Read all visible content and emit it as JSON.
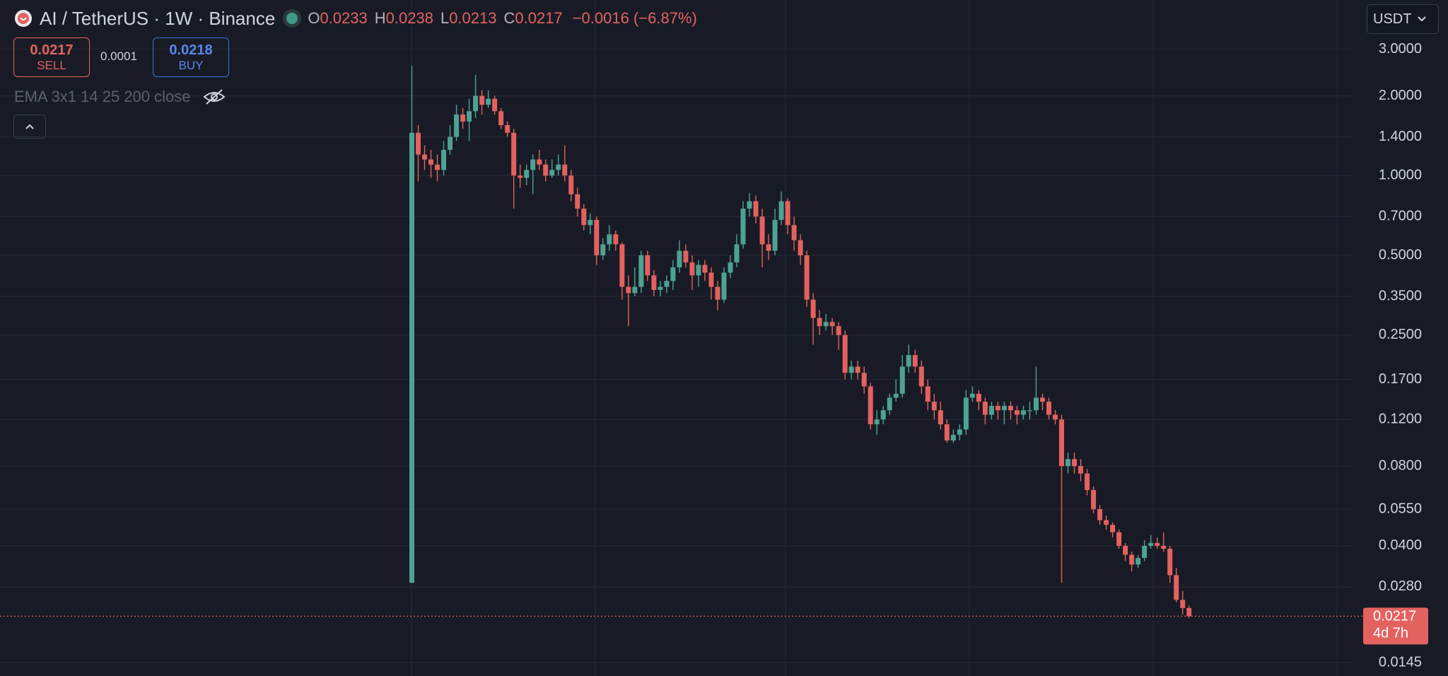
{
  "header": {
    "symbol": "AI / TetherUS · 1W · Binance",
    "ohlc_labels": [
      "O",
      "H",
      "L",
      "C"
    ],
    "change": "−0.0016 (−6.87%)"
  },
  "trade": {
    "sell_price": 0.0217,
    "sell_label": "SELL",
    "spread": 0.0001,
    "buy_price": 0.0218,
    "buy_label": "BUY"
  },
  "indicator": "EMA 3x1 14 25 200 close",
  "currency": "USDT",
  "chart_data": {
    "type": "candlestick",
    "open": [
      0.029,
      1.45,
      1.2,
      1.15,
      1.1,
      1.05,
      1.25,
      1.4,
      1.7,
      1.6,
      1.75,
      2.0,
      1.85,
      1.95,
      1.75,
      1.55,
      1.45,
      1.0,
      0.98,
      1.05,
      1.15,
      1.1,
      1.0,
      1.05,
      1.1,
      1.0,
      0.85,
      0.75,
      0.65,
      0.68,
      0.5,
      0.55,
      0.6,
      0.55,
      0.38,
      0.36,
      0.38,
      0.5,
      0.42,
      0.37,
      0.38,
      0.4,
      0.45,
      0.52,
      0.47,
      0.42,
      0.46,
      0.43,
      0.38,
      0.34,
      0.43,
      0.47,
      0.55,
      0.75,
      0.8,
      0.7,
      0.55,
      0.52,
      0.68,
      0.8,
      0.65,
      0.57,
      0.5,
      0.34,
      0.29,
      0.27,
      0.28,
      0.27,
      0.25,
      0.18,
      0.19,
      0.18,
      0.16,
      0.115,
      0.12,
      0.13,
      0.145,
      0.15,
      0.19,
      0.21,
      0.19,
      0.16,
      0.14,
      0.13,
      0.115,
      0.1,
      0.105,
      0.11,
      0.145,
      0.15,
      0.14,
      0.125,
      0.135,
      0.13,
      0.135,
      0.13,
      0.125,
      0.13,
      0.13,
      0.145,
      0.14,
      0.125,
      0.12,
      0.08,
      0.085,
      0.08,
      0.075,
      0.065,
      0.055,
      0.05,
      0.048,
      0.045,
      0.04,
      0.037,
      0.034,
      0.036,
      0.04,
      0.041,
      0.04,
      0.039,
      0.031,
      0.025,
      0.0233
    ],
    "high": [
      2.6,
      1.55,
      1.3,
      1.25,
      1.2,
      1.35,
      1.55,
      1.85,
      1.8,
      1.95,
      2.4,
      2.1,
      2.1,
      2.0,
      1.8,
      1.6,
      1.5,
      1.1,
      1.1,
      1.2,
      1.25,
      1.15,
      1.15,
      1.2,
      1.3,
      1.05,
      0.9,
      0.78,
      0.72,
      0.7,
      0.58,
      0.65,
      0.62,
      0.56,
      0.42,
      0.45,
      0.52,
      0.52,
      0.44,
      0.4,
      0.42,
      0.48,
      0.57,
      0.55,
      0.5,
      0.48,
      0.48,
      0.45,
      0.4,
      0.45,
      0.5,
      0.6,
      0.8,
      0.86,
      0.84,
      0.75,
      0.6,
      0.75,
      0.87,
      0.82,
      0.7,
      0.6,
      0.52,
      0.36,
      0.31,
      0.3,
      0.29,
      0.28,
      0.26,
      0.2,
      0.2,
      0.19,
      0.165,
      0.13,
      0.135,
      0.15,
      0.17,
      0.21,
      0.23,
      0.22,
      0.2,
      0.17,
      0.15,
      0.14,
      0.12,
      0.11,
      0.115,
      0.155,
      0.16,
      0.155,
      0.145,
      0.14,
      0.14,
      0.14,
      0.14,
      0.135,
      0.135,
      0.14,
      0.19,
      0.15,
      0.145,
      0.13,
      0.125,
      0.09,
      0.09,
      0.085,
      0.078,
      0.067,
      0.057,
      0.052,
      0.049,
      0.046,
      0.041,
      0.038,
      0.037,
      0.042,
      0.044,
      0.043,
      0.045,
      0.04,
      0.033,
      0.027,
      0.0238
    ],
    "low": [
      0.029,
      0.95,
      1.05,
      0.98,
      0.95,
      1.0,
      1.2,
      1.35,
      1.5,
      1.35,
      1.65,
      1.7,
      1.8,
      1.7,
      1.5,
      1.4,
      0.75,
      0.9,
      0.92,
      0.85,
      1.05,
      0.95,
      0.98,
      1.0,
      0.95,
      0.8,
      0.7,
      0.62,
      0.6,
      0.46,
      0.48,
      0.52,
      0.52,
      0.34,
      0.27,
      0.35,
      0.36,
      0.4,
      0.35,
      0.35,
      0.36,
      0.37,
      0.43,
      0.45,
      0.37,
      0.38,
      0.4,
      0.34,
      0.31,
      0.33,
      0.41,
      0.45,
      0.53,
      0.7,
      0.66,
      0.45,
      0.48,
      0.5,
      0.65,
      0.6,
      0.52,
      0.46,
      0.32,
      0.23,
      0.25,
      0.26,
      0.25,
      0.22,
      0.17,
      0.17,
      0.17,
      0.15,
      0.11,
      0.105,
      0.115,
      0.125,
      0.14,
      0.145,
      0.18,
      0.18,
      0.15,
      0.13,
      0.12,
      0.11,
      0.098,
      0.098,
      0.1,
      0.105,
      0.14,
      0.13,
      0.115,
      0.12,
      0.12,
      0.115,
      0.12,
      0.115,
      0.12,
      0.12,
      0.125,
      0.13,
      0.12,
      0.115,
      0.029,
      0.075,
      0.075,
      0.07,
      0.062,
      0.053,
      0.048,
      0.046,
      0.043,
      0.039,
      0.035,
      0.032,
      0.033,
      0.035,
      0.039,
      0.039,
      0.038,
      0.029,
      0.0245,
      0.022,
      0.0213
    ],
    "close": [
      1.45,
      1.2,
      1.15,
      1.1,
      1.05,
      1.25,
      1.4,
      1.7,
      1.6,
      1.75,
      2.0,
      1.85,
      1.95,
      1.75,
      1.55,
      1.45,
      1.0,
      0.98,
      1.05,
      1.15,
      1.1,
      1.0,
      1.05,
      1.1,
      1.0,
      0.85,
      0.75,
      0.65,
      0.68,
      0.5,
      0.55,
      0.6,
      0.55,
      0.38,
      0.36,
      0.38,
      0.5,
      0.42,
      0.37,
      0.38,
      0.4,
      0.45,
      0.52,
      0.47,
      0.42,
      0.46,
      0.43,
      0.38,
      0.34,
      0.43,
      0.47,
      0.55,
      0.75,
      0.8,
      0.7,
      0.55,
      0.52,
      0.68,
      0.8,
      0.65,
      0.57,
      0.5,
      0.34,
      0.29,
      0.27,
      0.28,
      0.27,
      0.25,
      0.18,
      0.19,
      0.18,
      0.16,
      0.115,
      0.12,
      0.13,
      0.145,
      0.15,
      0.19,
      0.21,
      0.19,
      0.16,
      0.14,
      0.13,
      0.115,
      0.1,
      0.105,
      0.11,
      0.145,
      0.15,
      0.14,
      0.125,
      0.135,
      0.13,
      0.135,
      0.13,
      0.125,
      0.13,
      0.13,
      0.145,
      0.14,
      0.125,
      0.12,
      0.08,
      0.085,
      0.08,
      0.075,
      0.065,
      0.055,
      0.05,
      0.048,
      0.045,
      0.04,
      0.037,
      0.034,
      0.036,
      0.04,
      0.041,
      0.04,
      0.039,
      0.031,
      0.025,
      0.0233,
      0.0217
    ],
    "ylim": [
      0.0129,
      4.6
    ],
    "log_scale": true,
    "grid": true,
    "yticks": [
      {
        "value": 3,
        "label": "3.0000"
      },
      {
        "value": 2,
        "label": "2.0000"
      },
      {
        "value": 1.4,
        "label": "1.4000"
      },
      {
        "value": 1,
        "label": "1.0000"
      },
      {
        "value": 0.7,
        "label": "0.7000"
      },
      {
        "value": 0.5,
        "label": "0.5000"
      },
      {
        "value": 0.35,
        "label": "0.3500"
      },
      {
        "value": 0.25,
        "label": "0.2500"
      },
      {
        "value": 0.17,
        "label": "0.1700"
      },
      {
        "value": 0.12,
        "label": "0.1200"
      },
      {
        "value": 0.08,
        "label": "0.0800"
      },
      {
        "value": 0.055,
        "label": "0.0550"
      },
      {
        "value": 0.04,
        "label": "0.0400"
      },
      {
        "value": 0.028,
        "label": "0.0280"
      },
      {
        "value": 0.0145,
        "label": "0.0145"
      }
    ],
    "up_color": "#4da393",
    "down_color": "#e3625f",
    "countdown": "4d 7h"
  }
}
